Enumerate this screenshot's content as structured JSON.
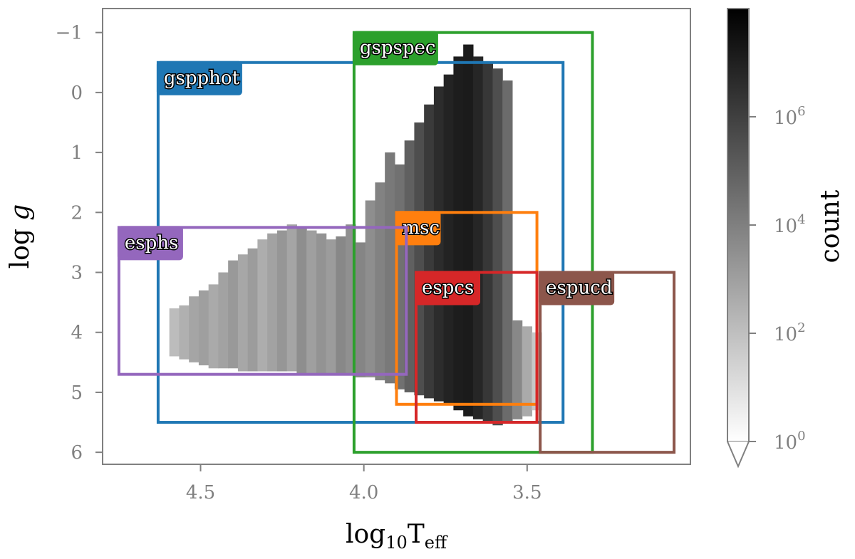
{
  "chart_data": {
    "type": "heatmap",
    "xlabel": "log10Teff",
    "ylabel": "log g",
    "xlim": [
      4.8,
      3.0
    ],
    "ylim": [
      6.2,
      -1.4
    ],
    "xticks": [
      {
        "v": 4.5,
        "label": "4.5"
      },
      {
        "v": 4.0,
        "label": "4.0"
      },
      {
        "v": 3.5,
        "label": "3.5"
      }
    ],
    "yticks": [
      {
        "v": -1,
        "label": "−1"
      },
      {
        "v": 0,
        "label": "0"
      },
      {
        "v": 1,
        "label": "1"
      },
      {
        "v": 2,
        "label": "2"
      },
      {
        "v": 3,
        "label": "3"
      },
      {
        "v": 4,
        "label": "4"
      },
      {
        "v": 5,
        "label": "5"
      },
      {
        "v": 6,
        "label": "6"
      }
    ],
    "colorbar": {
      "label": "count",
      "scale": "log",
      "range": [
        1,
        100000000
      ],
      "ticks": [
        {
          "exp": 0,
          "base": "10",
          "sup": "0"
        },
        {
          "exp": 2,
          "base": "10",
          "sup": "2"
        },
        {
          "exp": 4,
          "base": "10",
          "sup": "4"
        },
        {
          "exp": 6,
          "base": "10",
          "sup": "6"
        }
      ]
    },
    "regions": [
      {
        "name": "gspphot",
        "color": "#1f77b4",
        "teff_range": [
          4.63,
          3.39
        ],
        "logg_range": [
          -0.5,
          5.5
        ]
      },
      {
        "name": "gspspec",
        "color": "#2ca02c",
        "teff_range": [
          4.03,
          3.3
        ],
        "logg_range": [
          -1.0,
          6.0
        ]
      },
      {
        "name": "msc",
        "color": "#ff7f0e",
        "teff_range": [
          3.9,
          3.47
        ],
        "logg_range": [
          2.0,
          5.2
        ]
      },
      {
        "name": "esphs",
        "color": "#9467bd",
        "teff_range": [
          4.75,
          3.87
        ],
        "logg_range": [
          2.25,
          4.7
        ]
      },
      {
        "name": "espcs",
        "color": "#d62728",
        "teff_range": [
          3.84,
          3.47
        ],
        "logg_range": [
          3.0,
          5.5
        ]
      },
      {
        "name": "espucd",
        "color": "#8c564b",
        "teff_range": [
          3.46,
          3.05
        ],
        "logg_range": [
          3.0,
          6.0
        ]
      }
    ],
    "density": [
      {
        "teff": 4.58,
        "logg_min": 3.6,
        "logg_max": 4.4,
        "log_count": 2.0
      },
      {
        "teff": 4.55,
        "logg_min": 3.55,
        "logg_max": 4.45,
        "log_count": 2.4
      },
      {
        "teff": 4.52,
        "logg_min": 3.4,
        "logg_max": 4.5,
        "log_count": 2.8
      },
      {
        "teff": 4.49,
        "logg_min": 3.3,
        "logg_max": 4.55,
        "log_count": 3.0
      },
      {
        "teff": 4.46,
        "logg_min": 3.2,
        "logg_max": 4.6,
        "log_count": 2.6
      },
      {
        "teff": 4.43,
        "logg_min": 3.0,
        "logg_max": 4.6,
        "log_count": 2.9
      },
      {
        "teff": 4.4,
        "logg_min": 2.8,
        "logg_max": 4.6,
        "log_count": 3.2
      },
      {
        "teff": 4.37,
        "logg_min": 2.7,
        "logg_max": 4.65,
        "log_count": 2.7
      },
      {
        "teff": 4.34,
        "logg_min": 2.6,
        "logg_max": 4.65,
        "log_count": 3.1
      },
      {
        "teff": 4.31,
        "logg_min": 2.45,
        "logg_max": 4.65,
        "log_count": 2.5
      },
      {
        "teff": 4.28,
        "logg_min": 2.35,
        "logg_max": 4.65,
        "log_count": 2.9
      },
      {
        "teff": 4.25,
        "logg_min": 2.3,
        "logg_max": 4.65,
        "log_count": 3.3
      },
      {
        "teff": 4.22,
        "logg_min": 2.2,
        "logg_max": 4.65,
        "log_count": 2.8
      },
      {
        "teff": 4.19,
        "logg_min": 2.25,
        "logg_max": 4.7,
        "log_count": 3.6
      },
      {
        "teff": 4.16,
        "logg_min": 2.3,
        "logg_max": 4.7,
        "log_count": 3.0
      },
      {
        "teff": 4.13,
        "logg_min": 2.35,
        "logg_max": 4.7,
        "log_count": 3.4
      },
      {
        "teff": 4.1,
        "logg_min": 2.45,
        "logg_max": 4.7,
        "log_count": 3.1
      },
      {
        "teff": 4.07,
        "logg_min": 2.4,
        "logg_max": 4.7,
        "log_count": 3.8
      },
      {
        "teff": 4.04,
        "logg_min": 2.2,
        "logg_max": 4.7,
        "log_count": 3.5
      },
      {
        "teff": 4.01,
        "logg_min": 2.5,
        "logg_max": 4.75,
        "log_count": 3.9
      },
      {
        "teff": 3.98,
        "logg_min": 1.8,
        "logg_max": 4.75,
        "log_count": 3.6
      },
      {
        "teff": 3.95,
        "logg_min": 1.5,
        "logg_max": 4.8,
        "log_count": 4.0
      },
      {
        "teff": 3.92,
        "logg_min": 1.0,
        "logg_max": 4.85,
        "log_count": 4.3
      },
      {
        "teff": 3.89,
        "logg_min": 1.2,
        "logg_max": 4.95,
        "log_count": 4.6
      },
      {
        "teff": 3.86,
        "logg_min": 0.8,
        "logg_max": 5.0,
        "log_count": 5.2
      },
      {
        "teff": 3.83,
        "logg_min": 0.5,
        "logg_max": 5.05,
        "log_count": 5.8
      },
      {
        "teff": 3.8,
        "logg_min": 0.2,
        "logg_max": 5.1,
        "log_count": 6.5
      },
      {
        "teff": 3.77,
        "logg_min": -0.1,
        "logg_max": 5.15,
        "log_count": 7.0
      },
      {
        "teff": 3.74,
        "logg_min": -0.3,
        "logg_max": 5.2,
        "log_count": 7.3
      },
      {
        "teff": 3.71,
        "logg_min": -0.6,
        "logg_max": 5.3,
        "log_count": 7.5
      },
      {
        "teff": 3.68,
        "logg_min": -0.8,
        "logg_max": 5.4,
        "log_count": 7.6
      },
      {
        "teff": 3.65,
        "logg_min": -0.6,
        "logg_max": 5.45,
        "log_count": 7.2
      },
      {
        "teff": 3.62,
        "logg_min": -0.5,
        "logg_max": 5.5,
        "log_count": 6.6
      },
      {
        "teff": 3.59,
        "logg_min": -0.4,
        "logg_max": 5.55,
        "log_count": 5.8
      },
      {
        "teff": 3.56,
        "logg_min": -0.2,
        "logg_max": 5.5,
        "log_count": 4.8
      },
      {
        "teff": 3.53,
        "logg_min": 3.8,
        "logg_max": 5.45,
        "log_count": 3.8
      },
      {
        "teff": 3.5,
        "logg_min": 3.9,
        "logg_max": 5.4,
        "log_count": 2.6
      },
      {
        "teff": 3.47,
        "logg_min": 4.0,
        "logg_max": 5.3,
        "log_count": 1.6
      }
    ]
  }
}
